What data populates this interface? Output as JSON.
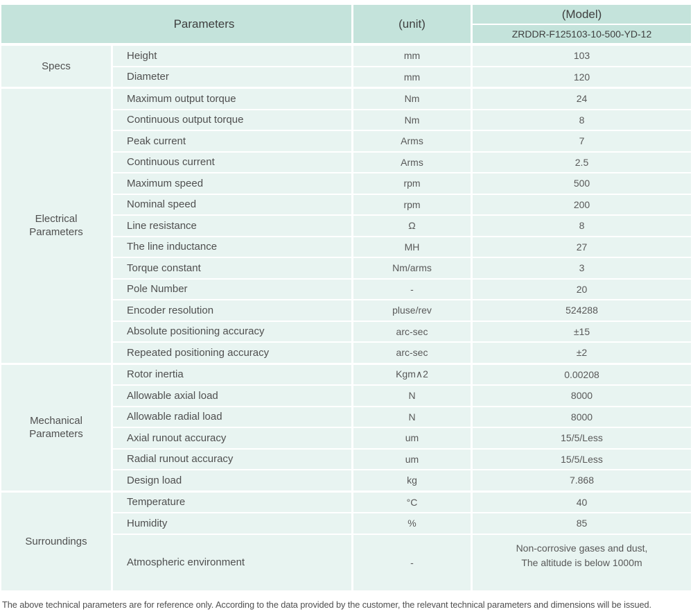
{
  "header": {
    "parameters_label": "Parameters",
    "unit_label": "(unit)",
    "model_label": "(Model)",
    "model_number": "ZRDDR-F125103-10-500-YD-12"
  },
  "colors": {
    "header_bg": "#c4e3db",
    "row_bg": "#e8f4f1",
    "border": "#ffffff",
    "text": "#4f4f4f"
  },
  "groups": [
    {
      "name": "Specs",
      "rows": [
        {
          "param": "Height",
          "unit": "mm",
          "value": "103"
        },
        {
          "param": "Diameter",
          "unit": "mm",
          "value": "120"
        }
      ]
    },
    {
      "name": "Electrical\nParameters",
      "rows": [
        {
          "param": "Maximum output torque",
          "unit": "Nm",
          "value": "24"
        },
        {
          "param": "Continuous output torque",
          "unit": "Nm",
          "value": "8"
        },
        {
          "param": "Peak current",
          "unit": "Arms",
          "value": "7"
        },
        {
          "param": "Continuous current",
          "unit": "Arms",
          "value": "2.5"
        },
        {
          "param": "Maximum speed",
          "unit": "rpm",
          "value": "500"
        },
        {
          "param": "Nominal speed",
          "unit": "rpm",
          "value": "200"
        },
        {
          "param": "Line resistance",
          "unit": "Ω",
          "value": "8"
        },
        {
          "param": "The line inductance",
          "unit": "MH",
          "value": "27"
        },
        {
          "param": "Torque constant",
          "unit": "Nm/arms",
          "value": "3"
        },
        {
          "param": "Pole Number",
          "unit": "-",
          "value": "20"
        },
        {
          "param": "Encoder resolution",
          "unit": "pluse/rev",
          "value": "524288"
        },
        {
          "param": "Absolute positioning accuracy",
          "unit": "arc-sec",
          "value": "±15"
        },
        {
          "param": "Repeated positioning accuracy",
          "unit": "arc-sec",
          "value": "±2"
        }
      ]
    },
    {
      "name": "Mechanical\nParameters",
      "rows": [
        {
          "param": "Rotor inertia",
          "unit": "Kgm∧2",
          "value": "0.00208"
        },
        {
          "param": "Allowable axial load",
          "unit": "N",
          "value": "8000"
        },
        {
          "param": "Allowable radial load",
          "unit": "N",
          "value": "8000"
        },
        {
          "param": "Axial runout accuracy",
          "unit": "um",
          "value": "15/5/Less"
        },
        {
          "param": "Radial runout accuracy",
          "unit": "um",
          "value": "15/5/Less"
        },
        {
          "param": "Design load",
          "unit": "kg",
          "value": "7.868"
        }
      ]
    },
    {
      "name": "Surroundings",
      "rows": [
        {
          "param": "Temperature",
          "unit": "°C",
          "value": "40"
        },
        {
          "param": "Humidity",
          "unit": "%",
          "value": "85"
        },
        {
          "param": "Atmospheric environment",
          "unit": "-",
          "value": "Non-corrosive gases and dust,\nThe altitude is below 1000m"
        }
      ]
    }
  ],
  "footer": {
    "note": "The above technical parameters are for reference only. According to the data provided by the customer, the relevant technical parameters and dimensions will be issued."
  }
}
